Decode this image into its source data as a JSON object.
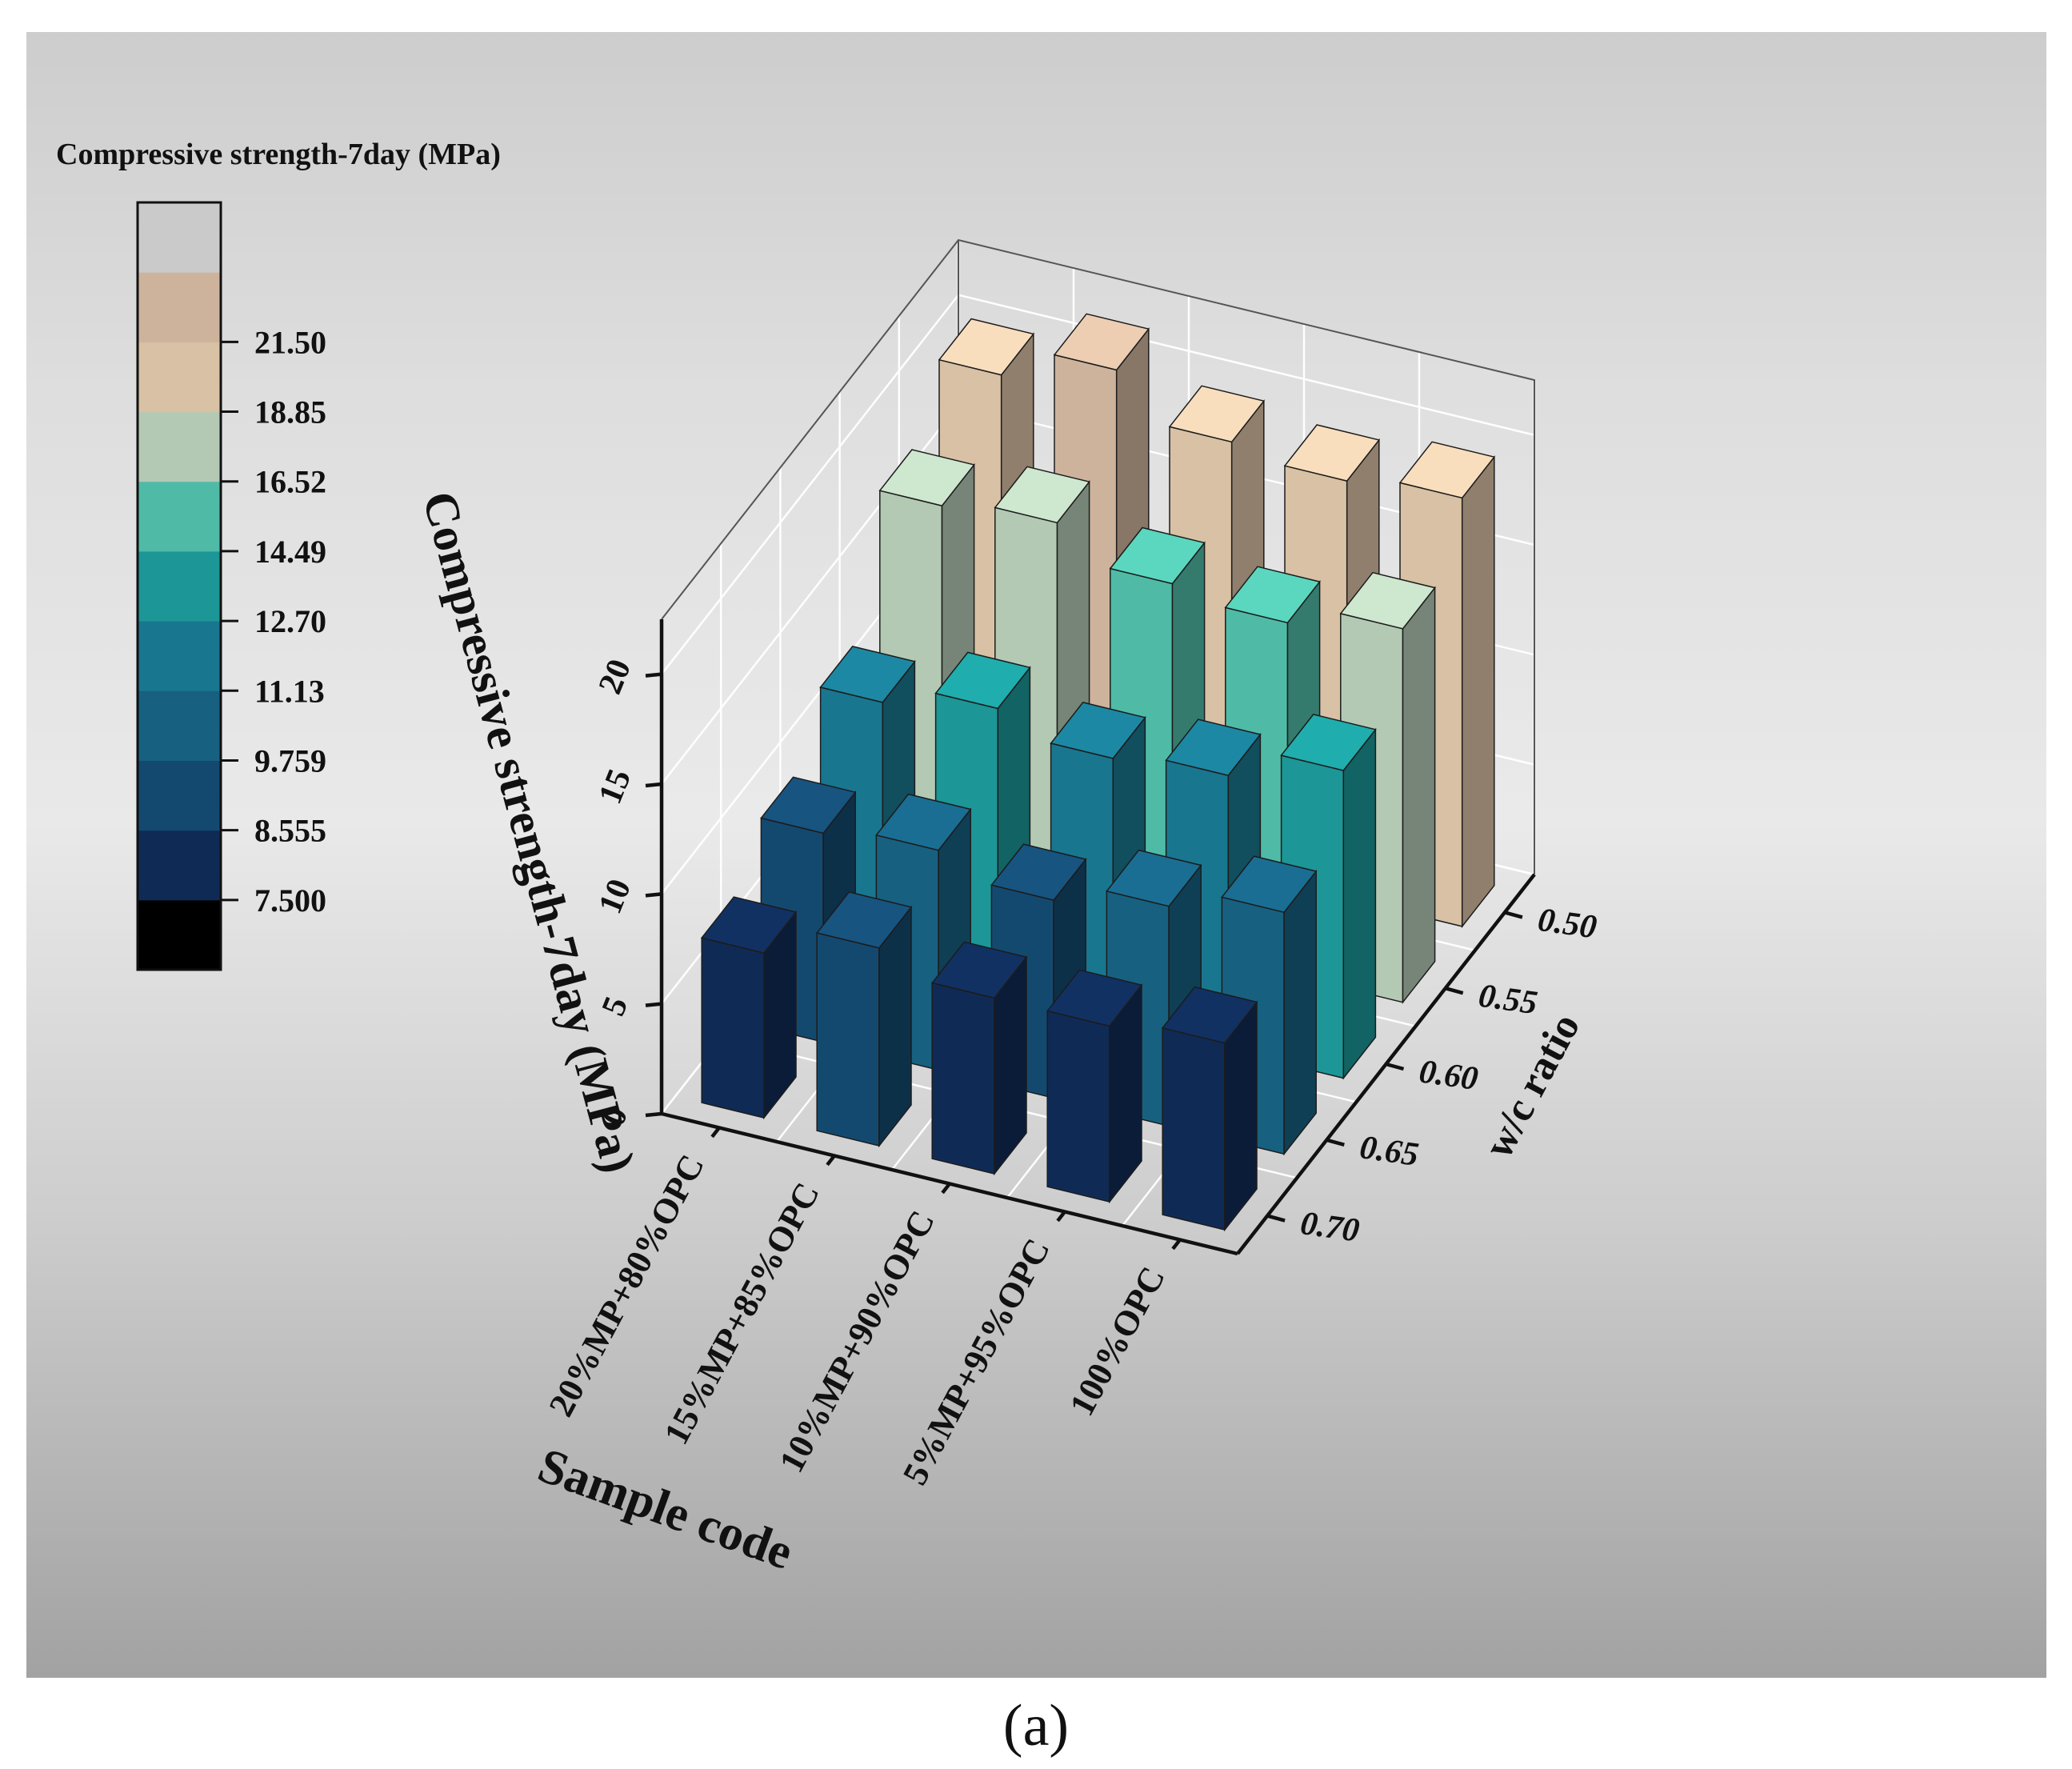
{
  "caption": "(a)",
  "chart_data": {
    "type": "bar3d",
    "title": "",
    "zlabel": "Compressive strength-7day (MPa)",
    "xlabel": "Sample code",
    "ylabel": "w/c ratio",
    "categories": [
      "20%MP+80%OPC",
      "15%MP+85%OPC",
      "10%MP+90%OPC",
      "5%MP+95%OPC",
      "100%OPC"
    ],
    "wc_ratios": [
      "0.50",
      "0.55",
      "0.60",
      "0.65",
      "0.70"
    ],
    "zlim": [
      0,
      22.5
    ],
    "zticks": [
      "0",
      "5",
      "10",
      "15",
      "20"
    ],
    "grid": true,
    "series": [
      {
        "name": "0.50",
        "values": [
          20.0,
          21.5,
          19.5,
          19.0,
          19.5
        ]
      },
      {
        "name": "0.55",
        "values": [
          17.5,
          18.0,
          16.5,
          16.0,
          17.0
        ]
      },
      {
        "name": "0.60",
        "values": [
          12.0,
          13.0,
          12.0,
          12.5,
          14.0
        ]
      },
      {
        "name": "0.65",
        "values": [
          9.5,
          10.0,
          9.0,
          10.0,
          11.0
        ]
      },
      {
        "name": "0.70",
        "values": [
          7.5,
          9.0,
          8.0,
          8.0,
          8.5
        ]
      }
    ],
    "colorbar": {
      "title": "Compressive strength-7day (MPa)",
      "levels": [
        "7.500",
        "8.555",
        "9.759",
        "11.13",
        "12.70",
        "14.49",
        "16.52",
        "18.85",
        "21.50"
      ],
      "bounds": [
        7.5,
        8.555,
        9.759,
        11.13,
        12.7,
        14.49,
        16.52,
        18.85,
        21.5
      ],
      "colors": [
        "#000000",
        "#0f2b55",
        "#14496f",
        "#176080",
        "#19768f",
        "#1c9696",
        "#4fbba7",
        "#b3c9b4",
        "#d8c1a4",
        "#ceb39c",
        "#cacaca"
      ]
    }
  }
}
